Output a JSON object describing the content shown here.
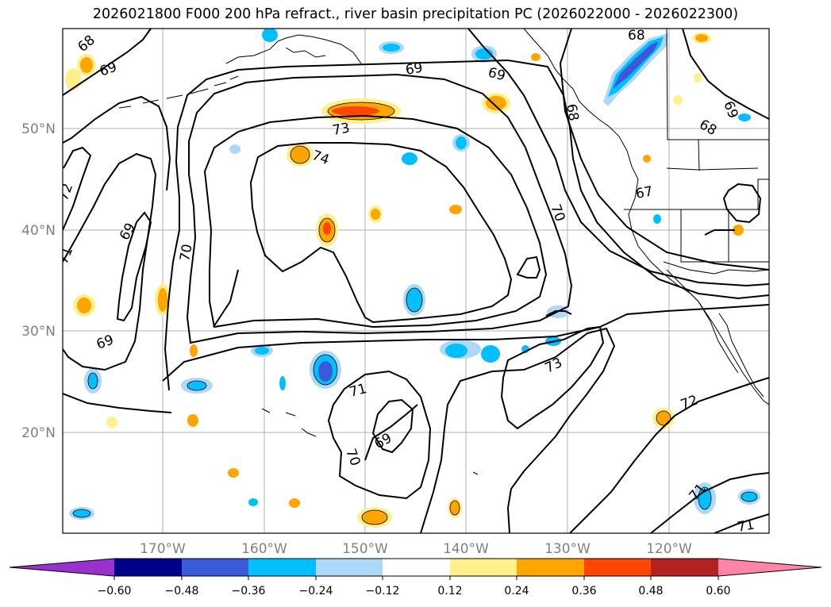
{
  "title": "2026021800 F000 200 hPa refract., river basin precipitation PC (2026022000 - 2026022300)",
  "map": {
    "lat_labels": [
      "50°N",
      "40°N",
      "30°N",
      "20°N"
    ],
    "lon_labels": [
      "170°W",
      "160°W",
      "150°W",
      "140°W",
      "130°W",
      "120°W"
    ],
    "contour_labels": [
      "68",
      "69",
      "69",
      "69",
      "68",
      "68",
      "73",
      "74",
      "72",
      "71",
      "69",
      "70",
      "70",
      "67",
      "68",
      "69",
      "69",
      "71",
      "70",
      "69",
      "73",
      "72",
      "71",
      "71"
    ]
  },
  "colorbar": {
    "ticks": [
      "−0.60",
      "−0.48",
      "−0.36",
      "−0.24",
      "−0.12",
      "0.12",
      "0.24",
      "0.36",
      "0.48",
      "0.60"
    ],
    "colors": [
      "#9932cc",
      "#00008b",
      "#3a5bd9",
      "#00bfff",
      "#add8f7",
      "#ffffff",
      "#fff08c",
      "#ffa500",
      "#ff4500",
      "#b22222",
      "#ff85a8"
    ]
  }
}
